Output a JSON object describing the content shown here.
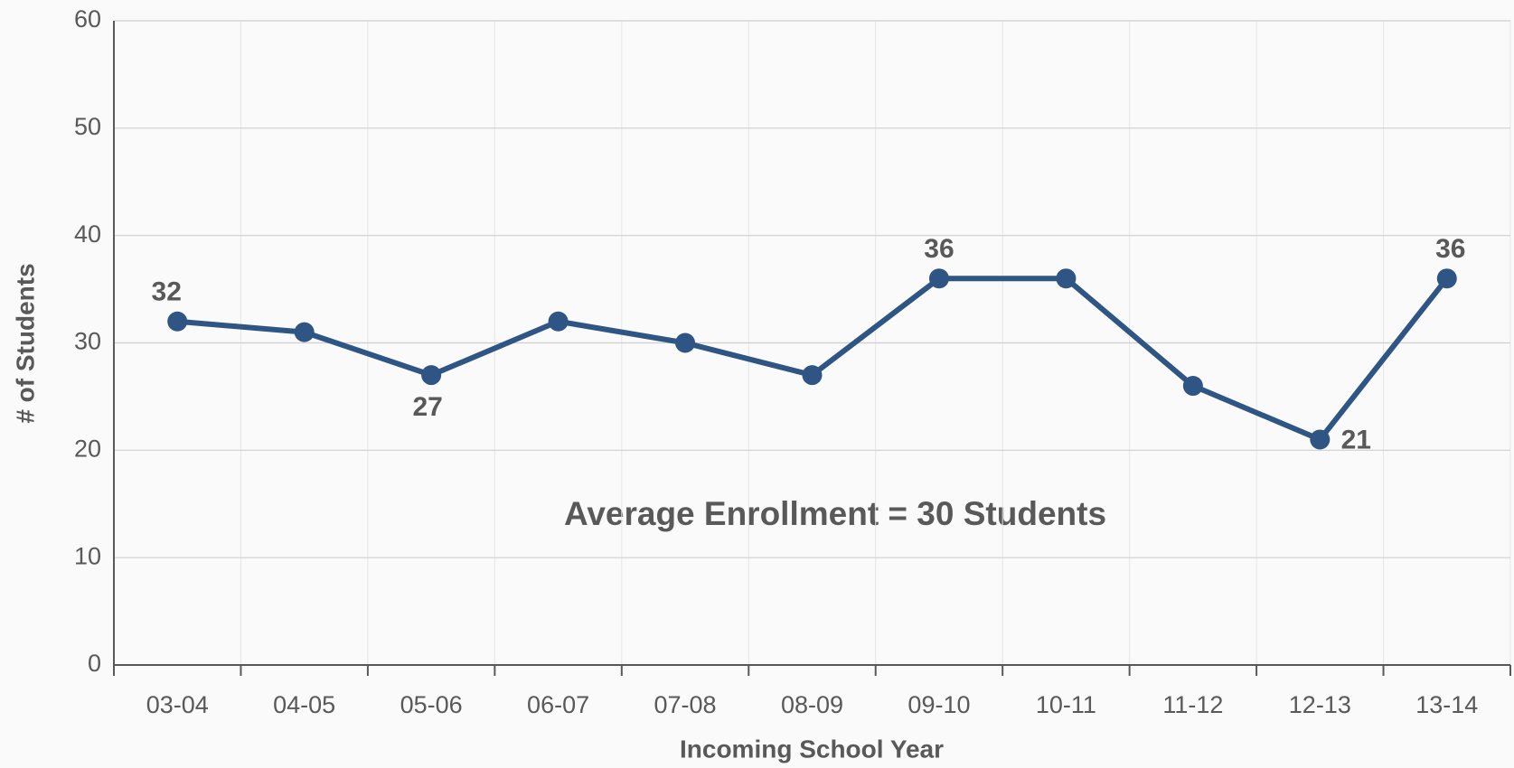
{
  "chart_data": {
    "type": "line",
    "x_label": "Incoming School Year",
    "y_label": "# of Students",
    "annotation": "Average Enrollment = 30 Students",
    "categories": [
      "03-04",
      "04-05",
      "05-06",
      "06-07",
      "07-08",
      "08-09",
      "09-10",
      "10-11",
      "11-12",
      "12-13",
      "13-14"
    ],
    "values": [
      32,
      31,
      27,
      32,
      30,
      27,
      36,
      36,
      26,
      21,
      36
    ],
    "value_labels": [
      "32",
      null,
      "27",
      null,
      null,
      null,
      "36",
      null,
      null,
      "21",
      "36"
    ],
    "color": "#2e5583",
    "ylim": [
      0,
      60
    ],
    "yticks": [
      0,
      10,
      20,
      30,
      40,
      50,
      60
    ],
    "grid": true
  }
}
